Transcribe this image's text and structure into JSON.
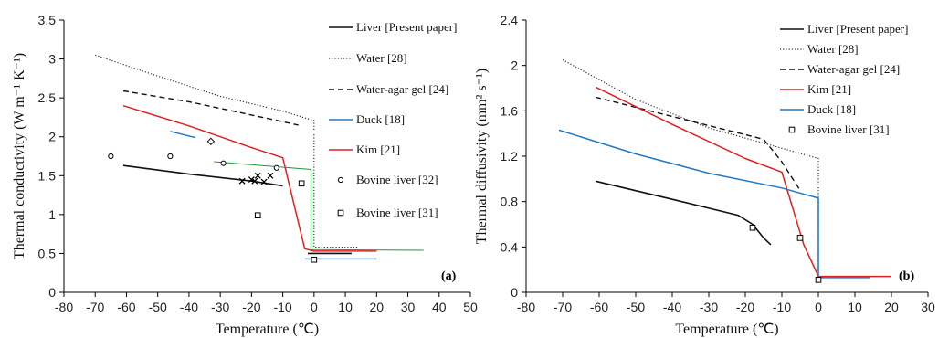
{
  "chart_data": [
    {
      "type": "line",
      "panel_label": "(a)",
      "xlabel": "Temperature (℃)",
      "ylabel": "Thermal conductivity (W m⁻¹ K⁻¹)",
      "xlim": [
        -80,
        50
      ],
      "ylim": [
        0,
        3.5
      ],
      "xticks": [
        -80,
        -70,
        -60,
        -50,
        -40,
        -30,
        -20,
        -10,
        0,
        10,
        20,
        30,
        40,
        50
      ],
      "yticks": [
        0,
        0.5,
        1,
        1.5,
        2,
        2.5,
        3,
        3.5
      ],
      "legend": [
        "Liver [Present paper]",
        "Water [28]",
        "Water-agar gel [24]",
        "Duck [18]",
        "Kim [21]",
        "Bovine liver [32]",
        "Bovine liver [31]"
      ],
      "legend_position": "right",
      "series": [
        {
          "name": "Liver [Present paper]",
          "color": "#111111",
          "style": "solid",
          "width": 1.6,
          "segments": [
            [
              [
                -61,
                1.63
              ],
              [
                -40,
                1.52
              ],
              [
                -20,
                1.43
              ],
              [
                -10,
                1.37
              ]
            ],
            [
              [
                -2,
                0.5
              ],
              [
                12,
                0.5
              ]
            ]
          ]
        },
        {
          "name": "Water [28]",
          "color": "#333333",
          "style": "dotted",
          "width": 1.2,
          "segments": [
            [
              [
                -70,
                3.05
              ],
              [
                -50,
                2.78
              ],
              [
                -30,
                2.52
              ],
              [
                -10,
                2.33
              ],
              [
                -2,
                2.23
              ],
              [
                0,
                2.21
              ],
              [
                0,
                0.58
              ],
              [
                14,
                0.58
              ]
            ]
          ]
        },
        {
          "name": "Water-agar gel [24]",
          "color": "#111111",
          "style": "dashed",
          "width": 1.4,
          "segments": [
            [
              [
                -61,
                2.59
              ],
              [
                -40,
                2.45
              ],
              [
                -20,
                2.28
              ],
              [
                -5,
                2.15
              ]
            ]
          ]
        },
        {
          "name": "Duck [18]",
          "color": "#1f78c8",
          "style": "solid",
          "width": 1.4,
          "segments": [
            [
              [
                -46,
                2.07
              ],
              [
                -38,
                1.99
              ]
            ],
            [
              [
                -3,
                0.43
              ],
              [
                20,
                0.43
              ]
            ]
          ]
        },
        {
          "name": "Kim [21]",
          "color": "#e02020",
          "style": "solid",
          "width": 1.5,
          "segments": [
            [
              [
                -61,
                2.4
              ],
              [
                -40,
                2.14
              ],
              [
                -20,
                1.86
              ],
              [
                -10,
                1.73
              ],
              [
                -3,
                0.56
              ],
              [
                0,
                0.53
              ],
              [
                20,
                0.53
              ]
            ]
          ]
        },
        {
          "name": "",
          "color": "#1a9a3a",
          "style": "solid",
          "width": 1.0,
          "segments": [
            [
              [
                -32,
                1.68
              ],
              [
                -1,
                1.58
              ],
              [
                -1,
                0.55
              ],
              [
                35,
                0.54
              ]
            ]
          ]
        }
      ],
      "points": [
        {
          "name": "Bovine liver [32]",
          "marker": "circle",
          "x": [
            -46,
            -65,
            -29,
            -12
          ],
          "y": [
            1.75,
            1.75,
            1.66,
            1.6
          ]
        },
        {
          "name": "Bovine liver [31]",
          "marker": "square",
          "x": [
            -4,
            -18,
            0
          ],
          "y": [
            1.4,
            0.99,
            0.42
          ]
        },
        {
          "name": "",
          "marker": "diamond",
          "x": [
            -33
          ],
          "y": [
            1.94
          ]
        },
        {
          "name": "",
          "marker": "cross",
          "x": [
            -23,
            -20,
            -18,
            -16,
            -14,
            -19
          ],
          "y": [
            1.43,
            1.45,
            1.5,
            1.42,
            1.5,
            1.43
          ]
        }
      ]
    },
    {
      "type": "line",
      "panel_label": "(b)",
      "xlabel": "Temperature (℃)",
      "ylabel": "Thermal diffusivity (mm² s⁻¹)",
      "xlim": [
        -80,
        30
      ],
      "ylim": [
        0,
        2.4
      ],
      "xticks": [
        -80,
        -70,
        -60,
        -50,
        -40,
        -30,
        -20,
        -10,
        0,
        10,
        20,
        30
      ],
      "yticks": [
        0,
        0.4,
        0.8,
        1.2,
        1.6,
        2,
        2.4
      ],
      "legend": [
        "Liver [Present paper]",
        "Water [28]",
        "Water-agar gel [24]",
        "Kim [21]",
        "Duck [18]",
        "Bovine liver [31]"
      ],
      "legend_position": "top-right",
      "series": [
        {
          "name": "Liver [Present paper]",
          "color": "#111111",
          "style": "solid",
          "width": 1.6,
          "segments": [
            [
              [
                -61,
                0.98
              ],
              [
                -40,
                0.82
              ],
              [
                -22,
                0.68
              ],
              [
                -18,
                0.6
              ],
              [
                -15,
                0.48
              ],
              [
                -13,
                0.42
              ]
            ]
          ]
        },
        {
          "name": "Water [28]",
          "color": "#333333",
          "style": "dotted",
          "width": 1.2,
          "segments": [
            [
              [
                -70,
                2.05
              ],
              [
                -50,
                1.7
              ],
              [
                -30,
                1.45
              ],
              [
                -10,
                1.27
              ],
              [
                0,
                1.18
              ],
              [
                0,
                0.14
              ],
              [
                14,
                0.14
              ]
            ]
          ]
        },
        {
          "name": "Water-agar gel [24]",
          "color": "#111111",
          "style": "dashed",
          "width": 1.4,
          "segments": [
            [
              [
                -61,
                1.72
              ],
              [
                -40,
                1.55
              ],
              [
                -15,
                1.35
              ],
              [
                -10,
                1.15
              ],
              [
                -5,
                0.9
              ]
            ]
          ]
        },
        {
          "name": "Kim [21]",
          "color": "#e02020",
          "style": "solid",
          "width": 1.5,
          "segments": [
            [
              [
                -61,
                1.81
              ],
              [
                -40,
                1.48
              ],
              [
                -20,
                1.18
              ],
              [
                -10,
                1.06
              ],
              [
                -4,
                0.42
              ],
              [
                0,
                0.14
              ],
              [
                20,
                0.14
              ]
            ]
          ]
        },
        {
          "name": "Duck [18]",
          "color": "#1f78c8",
          "style": "solid",
          "width": 1.5,
          "segments": [
            [
              [
                -71,
                1.43
              ],
              [
                -50,
                1.22
              ],
              [
                -30,
                1.05
              ],
              [
                -10,
                0.92
              ],
              [
                0,
                0.83
              ],
              [
                0,
                0.13
              ],
              [
                14,
                0.13
              ]
            ]
          ]
        }
      ],
      "points": [
        {
          "name": "Bovine liver [31]",
          "marker": "square",
          "x": [
            -18,
            -5,
            0
          ],
          "y": [
            0.57,
            0.48,
            0.11
          ]
        }
      ]
    }
  ]
}
